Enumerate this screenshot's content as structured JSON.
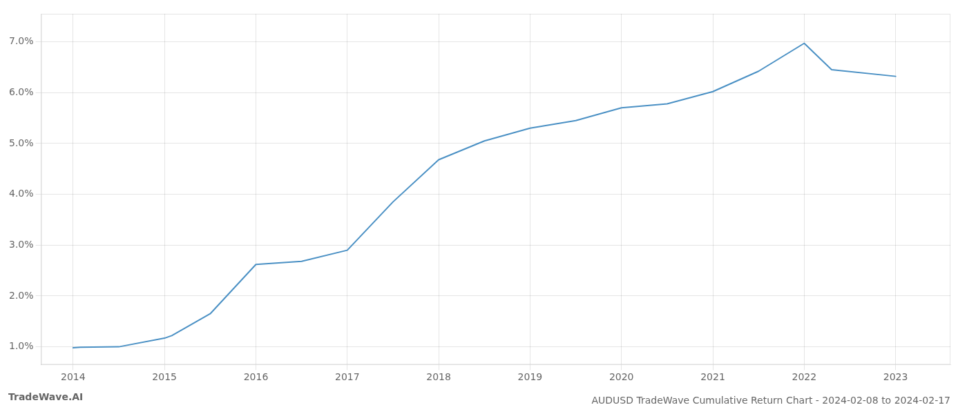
{
  "chart_data": {
    "type": "line",
    "title": "AUDUSD TradeWave Cumulative Return Chart - 2024-02-08 to 2024-02-17",
    "annotations": [
      "TradeWave.AI"
    ],
    "x": [
      2014,
      2014.08,
      2014.5,
      2015,
      2015.08,
      2015.5,
      2016,
      2016.5,
      2017,
      2017.5,
      2018,
      2018.5,
      2019,
      2019.5,
      2020,
      2020.5,
      2021,
      2021.5,
      2022,
      2022.3,
      2023
    ],
    "values": [
      0.98,
      0.99,
      1.0,
      1.17,
      1.22,
      1.65,
      2.62,
      2.68,
      2.9,
      3.85,
      4.68,
      5.05,
      5.3,
      5.45,
      5.7,
      5.78,
      6.02,
      6.42,
      6.97,
      6.45,
      6.32
    ],
    "color": "#4a90c4",
    "xlim": [
      2013.65,
      2023.6
    ],
    "ylim": [
      0.65,
      7.55
    ],
    "xticks": [
      2014,
      2015,
      2016,
      2017,
      2018,
      2019,
      2020,
      2021,
      2022,
      2023
    ],
    "yticks": [
      {
        "value": 1.0,
        "label": "1.0%"
      },
      {
        "value": 2.0,
        "label": "2.0%"
      },
      {
        "value": 3.0,
        "label": "3.0%"
      },
      {
        "value": 4.0,
        "label": "4.0%"
      },
      {
        "value": 5.0,
        "label": "5.0%"
      },
      {
        "value": 6.0,
        "label": "6.0%"
      },
      {
        "value": 7.0,
        "label": "7.0%"
      }
    ],
    "grid": true
  }
}
